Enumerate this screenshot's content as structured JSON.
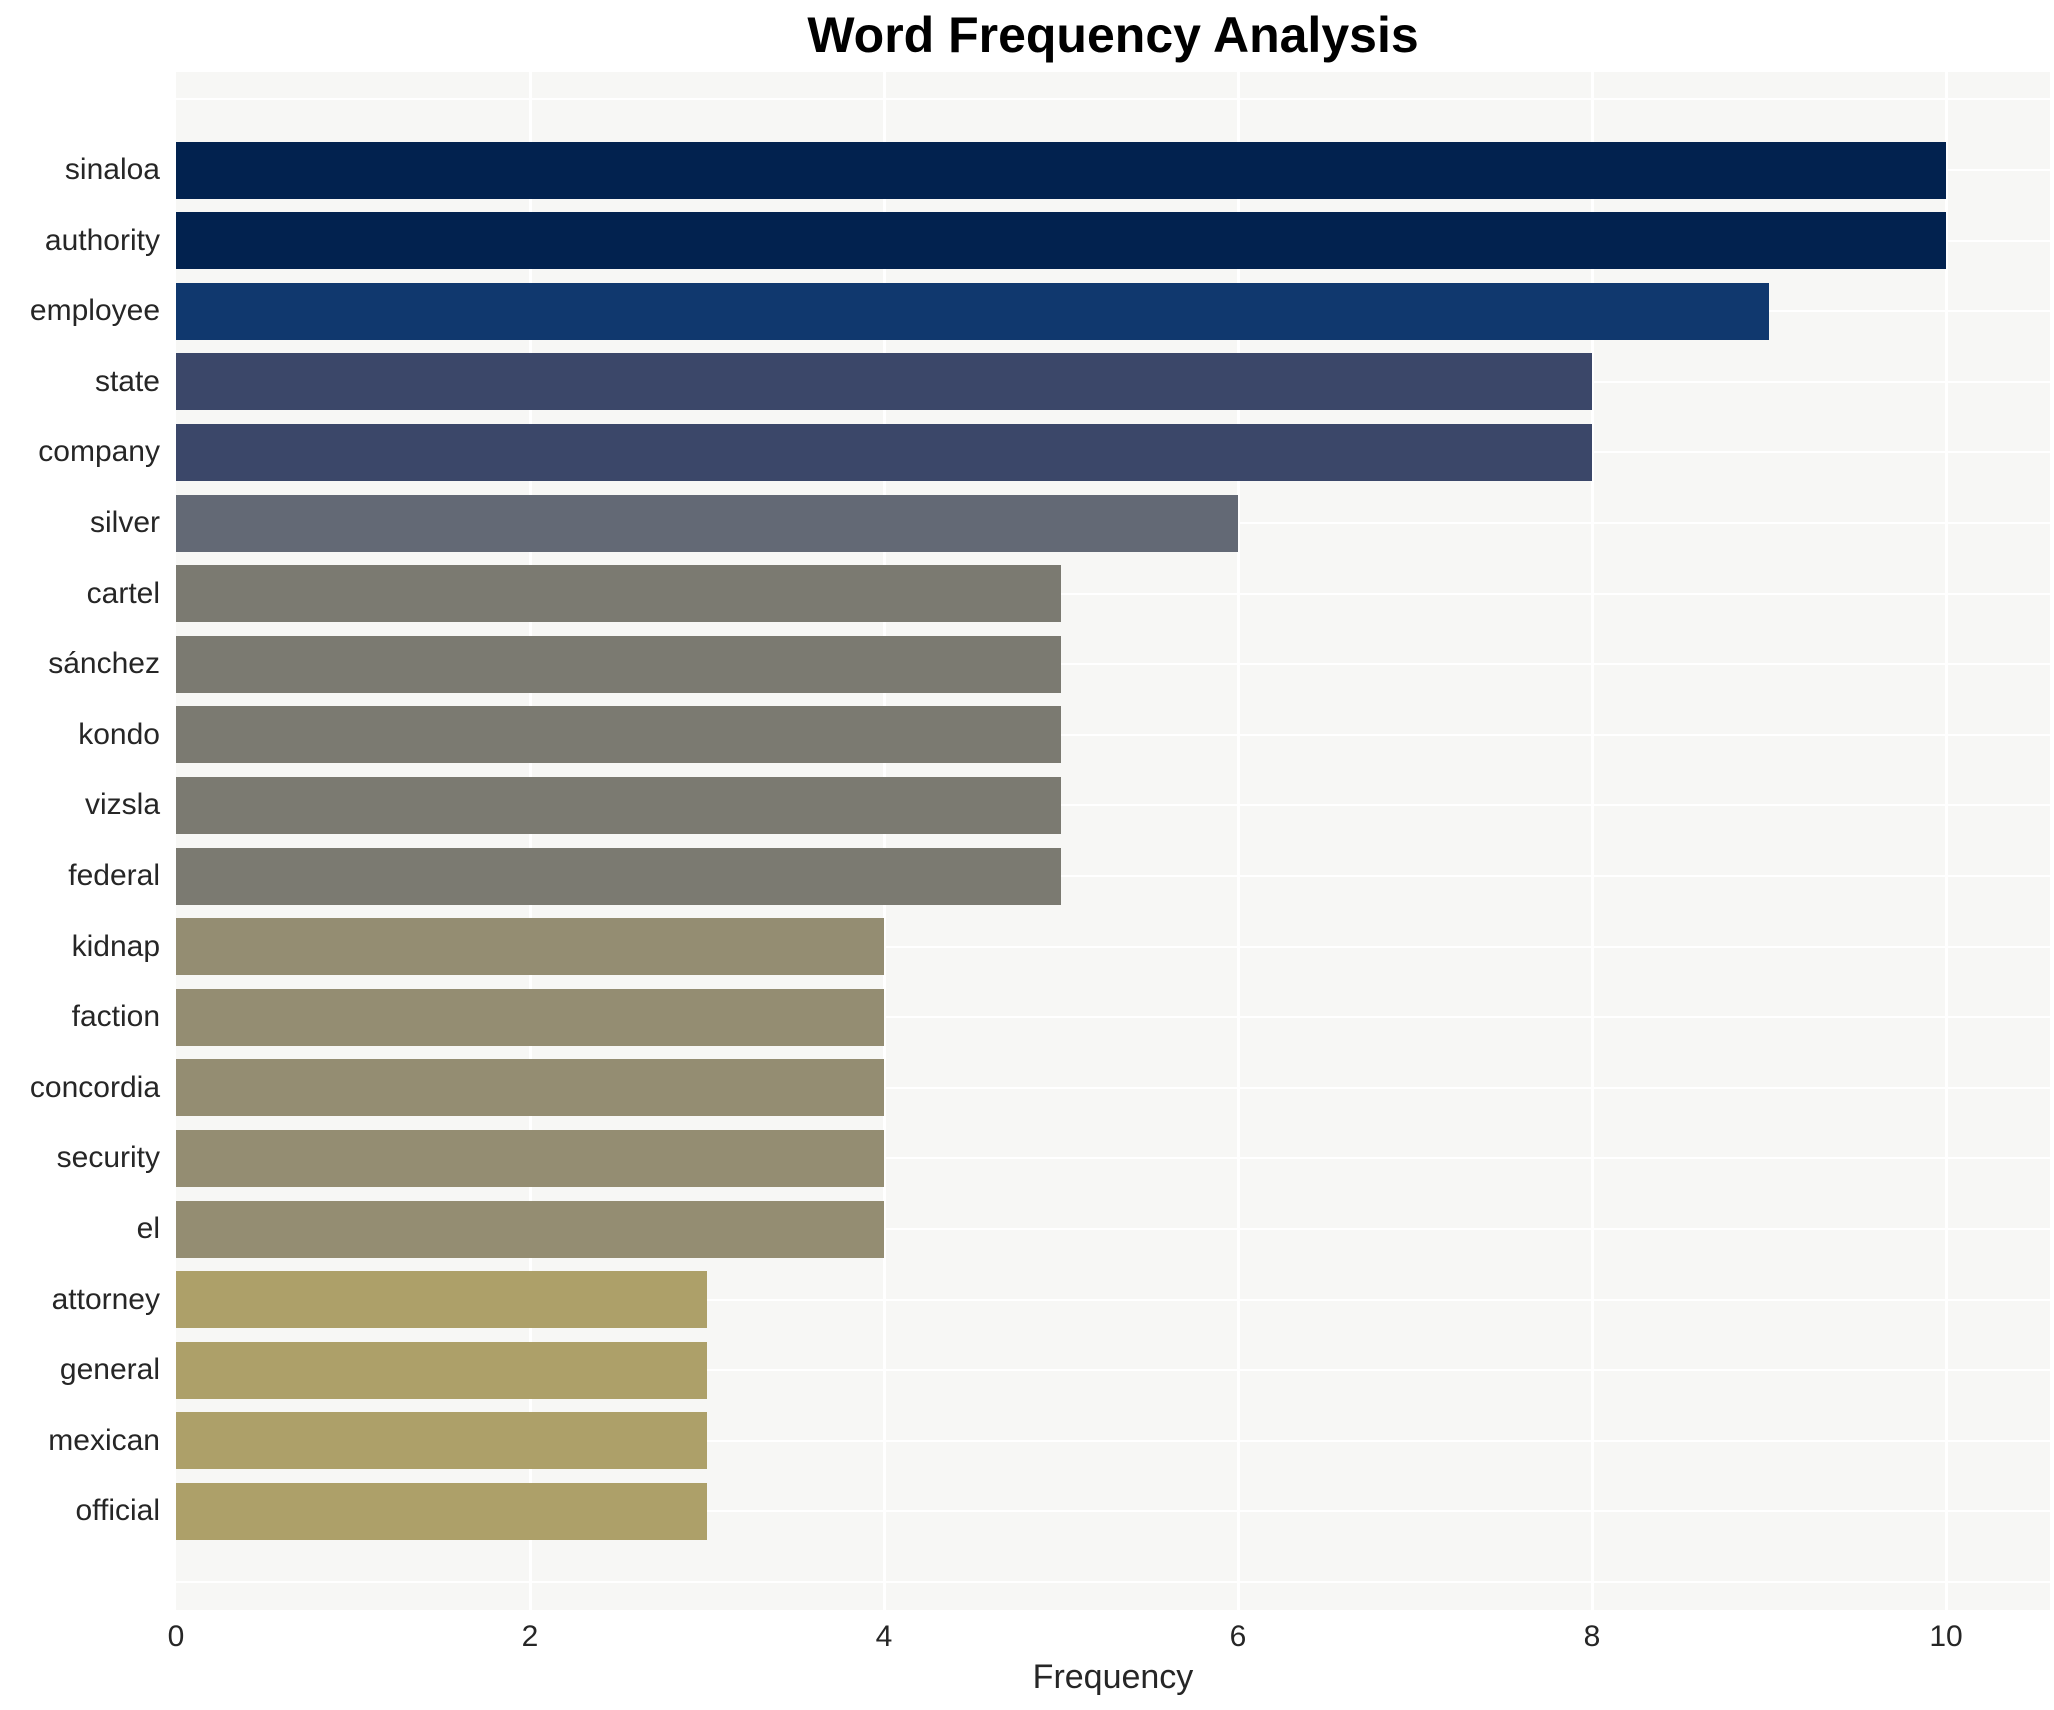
{
  "chart_data": {
    "type": "bar",
    "orientation": "horizontal",
    "title": "Word Frequency Analysis",
    "xlabel": "Frequency",
    "ylabel": "",
    "categories": [
      "sinaloa",
      "authority",
      "employee",
      "state",
      "company",
      "silver",
      "cartel",
      "sánchez",
      "kondo",
      "vizsla",
      "federal",
      "kidnap",
      "faction",
      "concordia",
      "security",
      "el",
      "attorney",
      "general",
      "mexican",
      "official"
    ],
    "values": [
      10,
      10,
      9,
      8,
      8,
      6,
      5,
      5,
      5,
      5,
      5,
      4,
      4,
      4,
      4,
      4,
      3,
      3,
      3,
      3
    ],
    "bar_colors": [
      "#02224F",
      "#02224F",
      "#10386E",
      "#3B4769",
      "#3B4769",
      "#636975",
      "#7B7A71",
      "#7B7A71",
      "#7B7A71",
      "#7B7A71",
      "#7B7A71",
      "#948D72",
      "#948D72",
      "#948D72",
      "#948D72",
      "#948D72",
      "#ADA069",
      "#ADA069",
      "#ADA069",
      "#ADA069"
    ],
    "x_ticks": [
      0,
      2,
      4,
      6,
      8,
      10
    ],
    "xlim": [
      0,
      10.6
    ],
    "grid": true,
    "legend": false,
    "plot_bg": "#f7f7f5",
    "grid_color": "#ffffff",
    "text_color": "#262626",
    "title_color": "#000000"
  }
}
